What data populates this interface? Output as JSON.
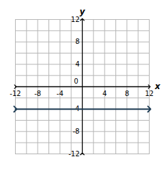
{
  "chart_data": {
    "type": "line",
    "xlabel": "x",
    "ylabel": "y",
    "x": [
      -12,
      12
    ],
    "values": [
      -4,
      -4
    ],
    "color": "#1d3b53",
    "marker": "arrow",
    "xlim": [
      -12,
      12
    ],
    "ylim": [
      -12,
      12
    ],
    "xticks": [
      -12,
      -8,
      -4,
      0,
      4,
      8,
      12
    ],
    "yticks": [
      -12,
      -8,
      -4,
      0,
      4,
      8,
      12
    ],
    "grid": true
  }
}
